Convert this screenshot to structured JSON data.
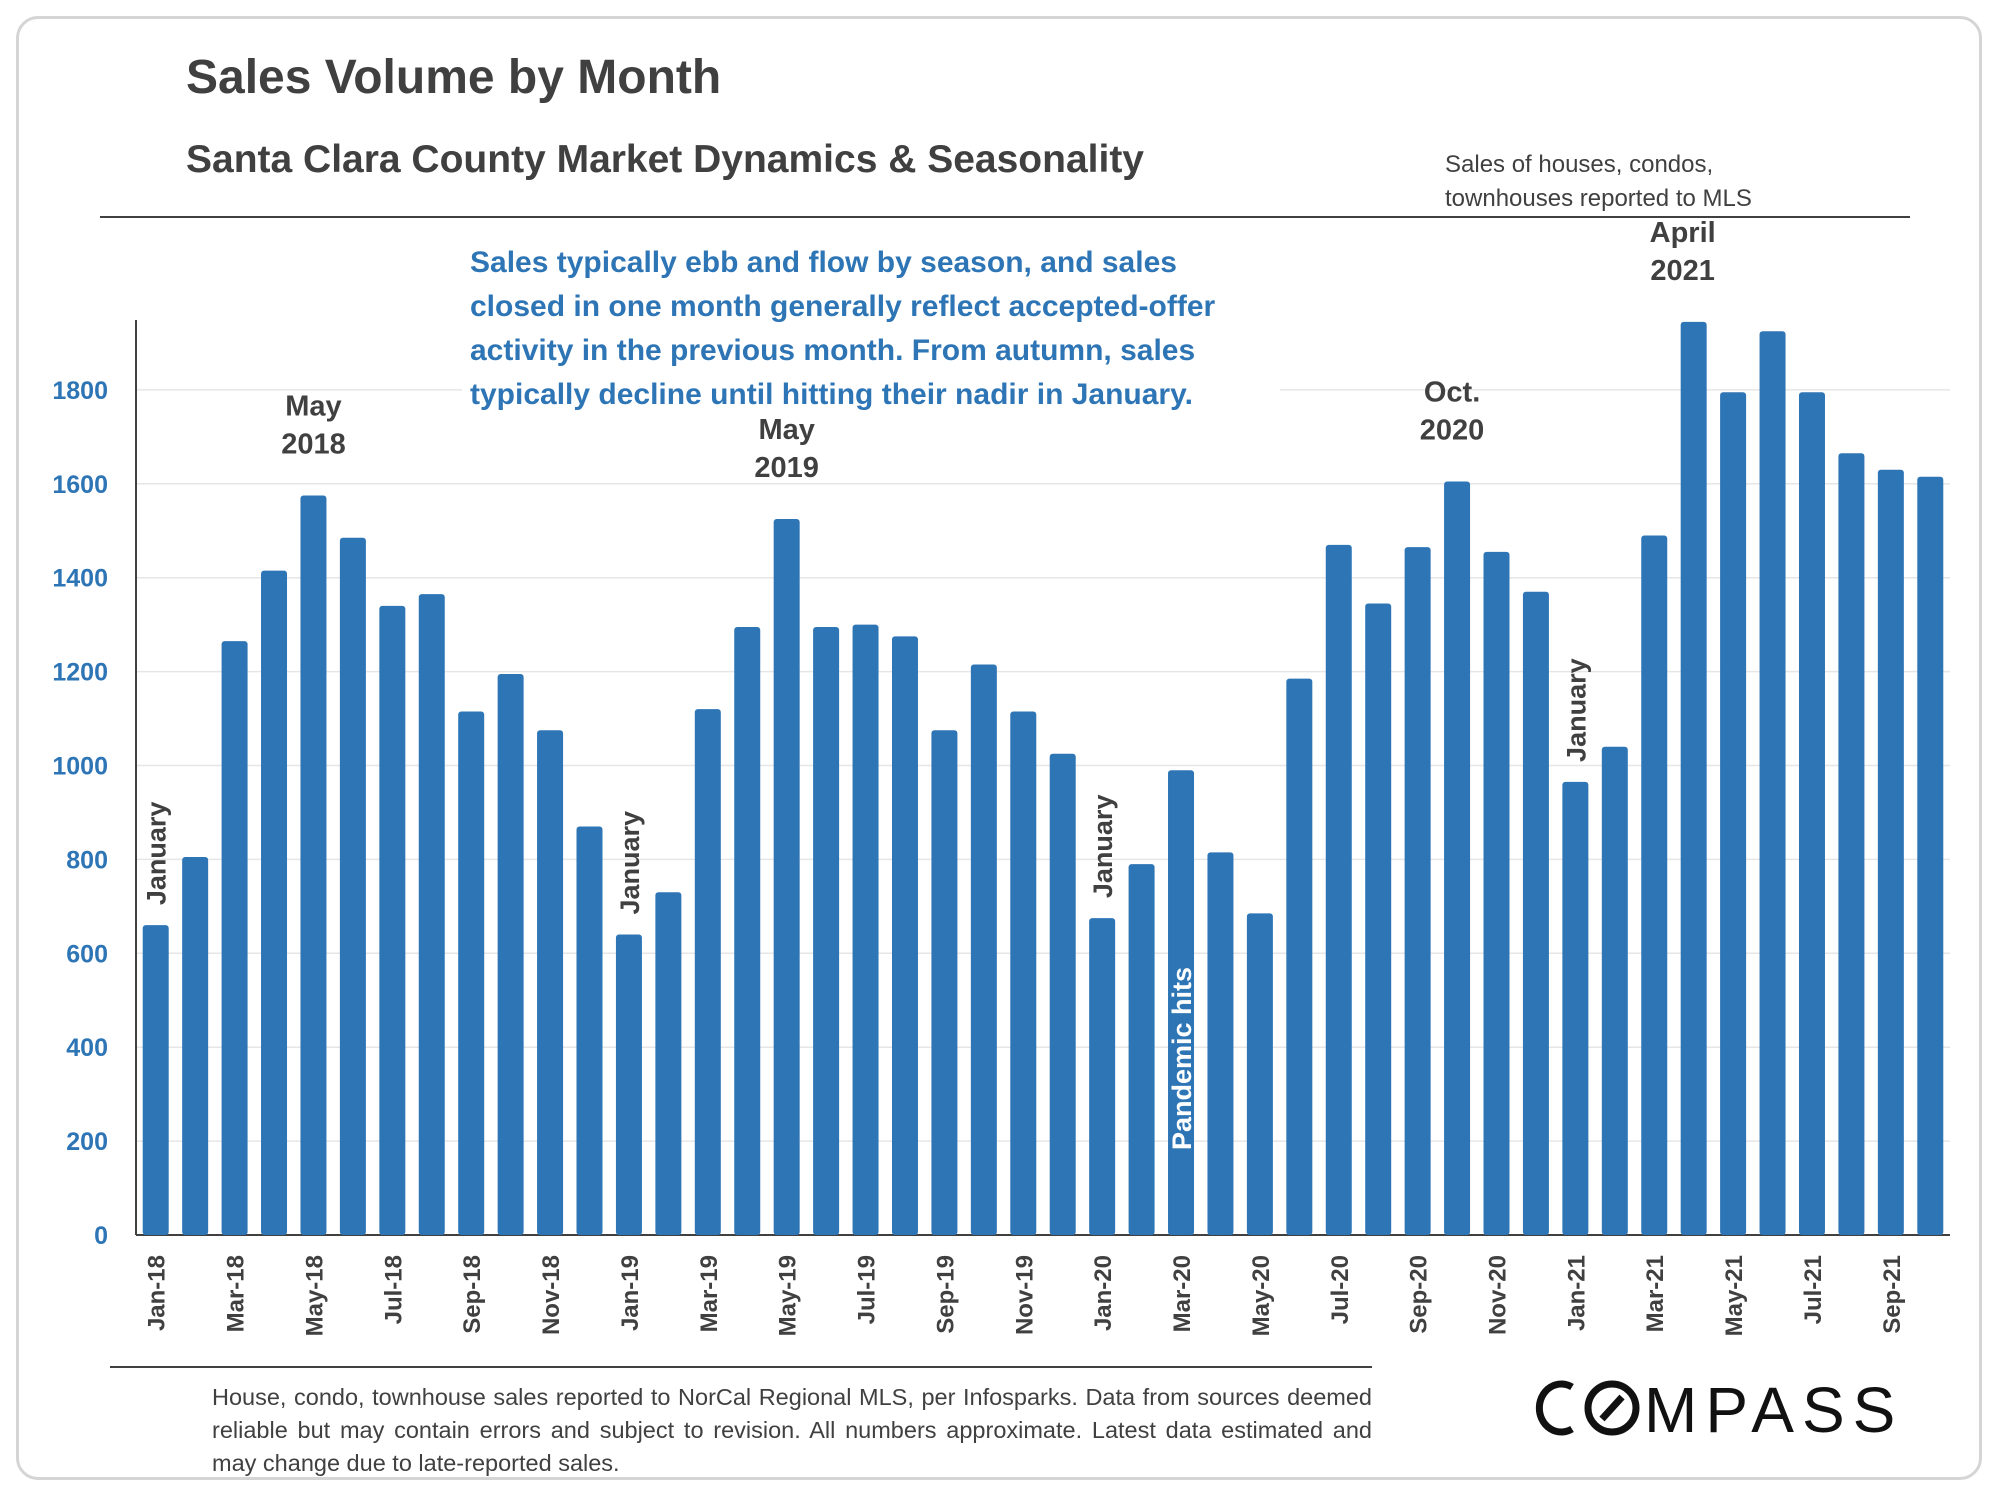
{
  "header": {
    "title": "Sales Volume by Month",
    "subtitle": "Santa Clara County Market Dynamics & Seasonality",
    "note_lines": [
      "Sales of houses, condos,",
      "townhouses  reported to MLS"
    ]
  },
  "footer": {
    "footnote": "House, condo, townhouse sales reported to NorCal Regional MLS, per Infosparks. Data from sources deemed reliable but may contain errors and subject to revision. All numbers approximate. Latest data estimated and may change due to late-reported sales.",
    "brand": "COMPASS"
  },
  "colors": {
    "bar": "#2E75B6",
    "axis_text": "#2E75B6",
    "callout_text": "#2E75B6",
    "label_text": "#404040",
    "grid": "#e6e6e6"
  },
  "chart_data": {
    "type": "bar",
    "title": "Sales Volume by Month",
    "subtitle": "Santa Clara County Market Dynamics & Seasonality",
    "xlabel": "",
    "ylabel": "",
    "ylim": [
      0,
      1900
    ],
    "yticks": [
      0,
      200,
      400,
      600,
      800,
      1000,
      1200,
      1400,
      1600,
      1800
    ],
    "grid": true,
    "legend": "none",
    "categories": [
      "Jan-18",
      "Feb-18",
      "Mar-18",
      "Apr-18",
      "May-18",
      "Jun-18",
      "Jul-18",
      "Aug-18",
      "Sep-18",
      "Oct-18",
      "Nov-18",
      "Dec-18",
      "Jan-19",
      "Feb-19",
      "Mar-19",
      "Apr-19",
      "May-19",
      "Jun-19",
      "Jul-19",
      "Aug-19",
      "Sep-19",
      "Oct-19",
      "Nov-19",
      "Dec-19",
      "Jan-20",
      "Feb-20",
      "Mar-20",
      "Apr-20",
      "May-20",
      "Jun-20",
      "Jul-20",
      "Aug-20",
      "Sep-20",
      "Oct-20",
      "Nov-20",
      "Dec-20",
      "Jan-21",
      "Feb-21",
      "Mar-21",
      "Apr-21",
      "May-21",
      "Jun-21",
      "Jul-21",
      "Aug-21",
      "Sep-21",
      "Oct-21"
    ],
    "tick_labels": [
      "Jan-18",
      "Mar-18",
      "May-18",
      "Jul-18",
      "Sep-18",
      "Nov-18",
      "Jan-19",
      "Mar-19",
      "May-19",
      "Jul-19",
      "Sep-19",
      "Nov-19",
      "Jan-20",
      "Mar-20",
      "May-20",
      "Jul-20",
      "Sep-20",
      "Nov-20",
      "Jan-21",
      "Mar-21",
      "May-21",
      "Jul-21",
      "Sep-21"
    ],
    "values": [
      660,
      805,
      1265,
      1415,
      1575,
      1485,
      1340,
      1365,
      1115,
      1195,
      1075,
      870,
      640,
      730,
      1120,
      1295,
      1525,
      1295,
      1300,
      1275,
      1075,
      1215,
      1115,
      1025,
      675,
      790,
      990,
      815,
      685,
      1185,
      1470,
      1345,
      1465,
      1605,
      1455,
      1370,
      965,
      1040,
      1490,
      1945,
      1795,
      1925,
      1795,
      1665,
      1630,
      1615
    ],
    "annotations": {
      "callout": "Sales typically ebb and flow by season, and sales closed in one month generally reflect accepted-offer activity in the previous month. From autumn, sales typically decline until hitting their nadir in January.",
      "peaks": [
        {
          "index": 4,
          "line1": "May",
          "line2": "2018"
        },
        {
          "index": 16,
          "line1": "May",
          "line2": "2019"
        },
        {
          "index": 33,
          "line1": "Oct.",
          "line2": "2020"
        },
        {
          "index": 39,
          "line1": "April",
          "line2": "2021"
        }
      ],
      "january_label": "January",
      "januaries": [
        0,
        12,
        24,
        36
      ],
      "pandemic": {
        "index": 26,
        "text": "Pandemic hits"
      }
    }
  }
}
